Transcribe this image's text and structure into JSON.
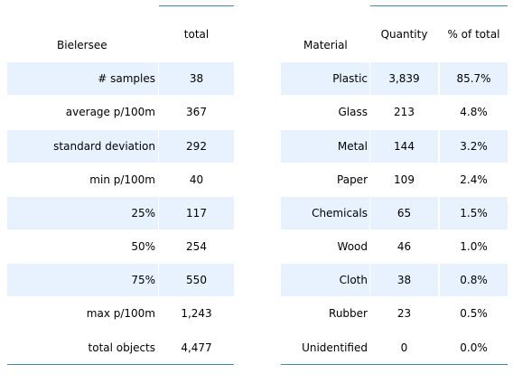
{
  "summary_table": {
    "title_label": "Bielersee",
    "column_header": "total",
    "rows": [
      {
        "label": "# samples",
        "value": "38"
      },
      {
        "label": "average p/100m",
        "value": "367"
      },
      {
        "label": "standard deviation",
        "value": "292"
      },
      {
        "label": "min p/100m",
        "value": "40"
      },
      {
        "label": "25%",
        "value": "117"
      },
      {
        "label": "50%",
        "value": "254"
      },
      {
        "label": "75%",
        "value": "550"
      },
      {
        "label": "max p/100m",
        "value": "1,243"
      },
      {
        "label": "total objects",
        "value": "4,477"
      }
    ]
  },
  "material_table": {
    "title_label": "Material",
    "headers": [
      "Quantity",
      "% of total"
    ],
    "rows": [
      {
        "material": "Plastic",
        "quantity": "3,839",
        "percent": "85.7%"
      },
      {
        "material": "Glass",
        "quantity": "213",
        "percent": "4.8%"
      },
      {
        "material": "Metal",
        "quantity": "144",
        "percent": "3.2%"
      },
      {
        "material": "Paper",
        "quantity": "109",
        "percent": "2.4%"
      },
      {
        "material": "Chemicals",
        "quantity": "65",
        "percent": "1.5%"
      },
      {
        "material": "Wood",
        "quantity": "46",
        "percent": "1.0%"
      },
      {
        "material": "Cloth",
        "quantity": "38",
        "percent": "0.8%"
      },
      {
        "material": "Rubber",
        "quantity": "23",
        "percent": "0.5%"
      },
      {
        "material": "Unidentified",
        "quantity": "0",
        "percent": "0.0%"
      }
    ]
  },
  "colors": {
    "row_shade": "#e8f2fe",
    "rule": "#3a86c8"
  }
}
